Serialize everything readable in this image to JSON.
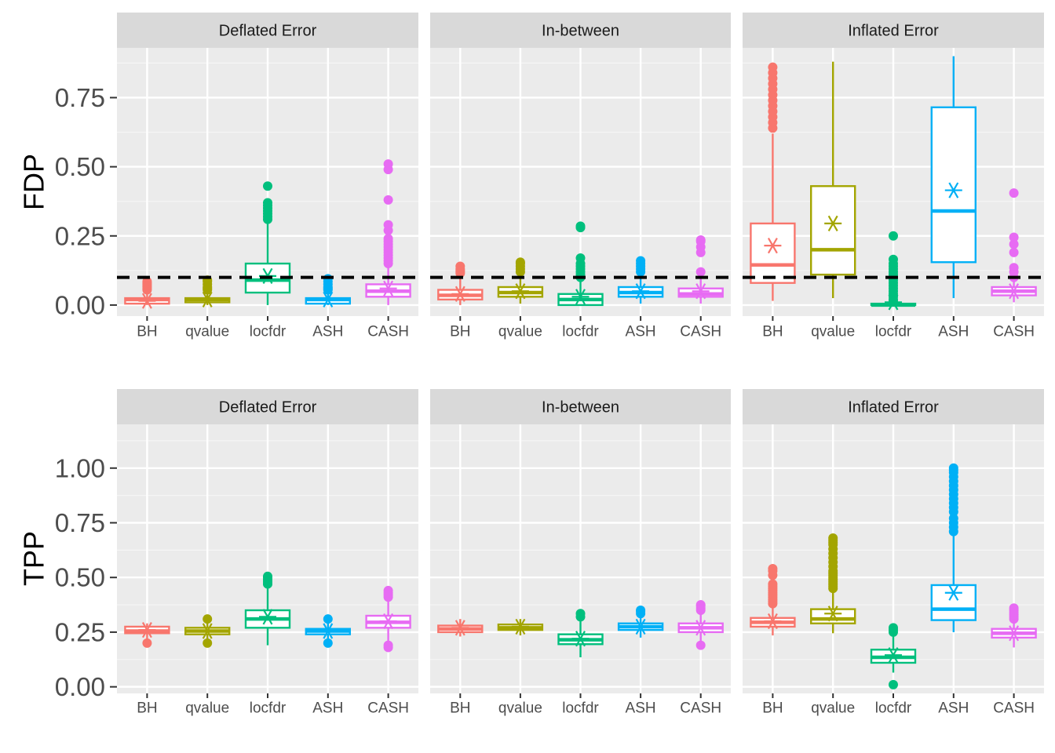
{
  "chart_data": [
    {
      "type": "boxplot",
      "ylabel": "FDP",
      "ylim": [
        -0.04,
        0.93
      ],
      "yticks": [
        0.0,
        0.25,
        0.5,
        0.75
      ],
      "ytick_labels": [
        "0.00",
        "0.25",
        "0.50",
        "0.75"
      ],
      "reference_line": {
        "y": 0.1,
        "style": "dashed",
        "color": "#000000"
      },
      "categories": [
        "BH",
        "qvalue",
        "locfdr",
        "ASH",
        "CASH"
      ],
      "panels": [
        {
          "title": "Deflated Error",
          "boxes": [
            {
              "q1": 0.005,
              "median": 0.02,
              "q3": 0.025,
              "whisker_low": 0.0,
              "whisker_high": 0.05,
              "mean": 0.015,
              "outliers": [
                0.055,
                0.06,
                0.065,
                0.07,
                0.075,
                0.08,
                0.085
              ]
            },
            {
              "q1": 0.01,
              "median": 0.02,
              "q3": 0.025,
              "whisker_low": 0.0,
              "whisker_high": 0.05,
              "mean": 0.02,
              "outliers": [
                0.055,
                0.06,
                0.065,
                0.075,
                0.085,
                0.09
              ]
            },
            {
              "q1": 0.045,
              "median": 0.09,
              "q3": 0.15,
              "whisker_low": 0.0,
              "whisker_high": 0.3,
              "mean": 0.105,
              "outliers": [
                0.31,
                0.32,
                0.33,
                0.34,
                0.35,
                0.36,
                0.37,
                0.43
              ]
            },
            {
              "q1": 0.005,
              "median": 0.02,
              "q3": 0.025,
              "whisker_low": 0.0,
              "whisker_high": 0.05,
              "mean": 0.02,
              "outliers": [
                0.055,
                0.06,
                0.065,
                0.075,
                0.085,
                0.095
              ]
            },
            {
              "q1": 0.03,
              "median": 0.05,
              "q3": 0.075,
              "whisker_low": 0.0,
              "whisker_high": 0.14,
              "mean": 0.06,
              "outliers": [
                0.15,
                0.16,
                0.17,
                0.18,
                0.19,
                0.2,
                0.21,
                0.22,
                0.23,
                0.24,
                0.27,
                0.29,
                0.38,
                0.49,
                0.51
              ]
            }
          ]
        },
        {
          "title": "In-between",
          "boxes": [
            {
              "q1": 0.02,
              "median": 0.035,
              "q3": 0.055,
              "whisker_low": 0.0,
              "whisker_high": 0.11,
              "mean": 0.04,
              "outliers": [
                0.115,
                0.12,
                0.125,
                0.13,
                0.14
              ]
            },
            {
              "q1": 0.03,
              "median": 0.045,
              "q3": 0.065,
              "whisker_low": 0.005,
              "whisker_high": 0.115,
              "mean": 0.05,
              "outliers": [
                0.12,
                0.13,
                0.14,
                0.15,
                0.155
              ]
            },
            {
              "q1": 0.0,
              "median": 0.02,
              "q3": 0.04,
              "whisker_low": 0.0,
              "whisker_high": 0.09,
              "mean": 0.03,
              "outliers": [
                0.1,
                0.11,
                0.12,
                0.13,
                0.14,
                0.15,
                0.17,
                0.28,
                0.285
              ]
            },
            {
              "q1": 0.03,
              "median": 0.045,
              "q3": 0.065,
              "whisker_low": 0.005,
              "whisker_high": 0.11,
              "mean": 0.05,
              "outliers": [
                0.12,
                0.13,
                0.14,
                0.15,
                0.16
              ]
            },
            {
              "q1": 0.03,
              "median": 0.04,
              "q3": 0.06,
              "whisker_low": 0.005,
              "whisker_high": 0.11,
              "mean": 0.05,
              "outliers": [
                0.12,
                0.19,
                0.21,
                0.23,
                0.235
              ]
            }
          ]
        },
        {
          "title": "Inflated Error",
          "boxes": [
            {
              "q1": 0.08,
              "median": 0.145,
              "q3": 0.295,
              "whisker_low": 0.015,
              "whisker_high": 0.62,
              "mean": 0.215,
              "outliers": [
                0.64,
                0.66,
                0.68,
                0.7,
                0.72,
                0.74,
                0.76,
                0.78,
                0.8,
                0.82,
                0.84,
                0.86
              ]
            },
            {
              "q1": 0.11,
              "median": 0.2,
              "q3": 0.43,
              "whisker_low": 0.025,
              "whisker_high": 0.88,
              "mean": 0.295,
              "outliers": []
            },
            {
              "q1": 0.0,
              "median": 0.0,
              "q3": 0.005,
              "whisker_low": 0.0,
              "whisker_high": 0.01,
              "mean": 0.01,
              "outliers": [
                0.015,
                0.02,
                0.03,
                0.04,
                0.05,
                0.06,
                0.07,
                0.08,
                0.09,
                0.1,
                0.11,
                0.12,
                0.13,
                0.14,
                0.15,
                0.165,
                0.25
              ]
            },
            {
              "q1": 0.155,
              "median": 0.34,
              "q3": 0.715,
              "whisker_low": 0.025,
              "whisker_high": 0.9,
              "mean": 0.415,
              "outliers": []
            },
            {
              "q1": 0.035,
              "median": 0.05,
              "q3": 0.065,
              "whisker_low": 0.01,
              "whisker_high": 0.09,
              "mean": 0.05,
              "outliers": [
                0.1,
                0.12,
                0.135,
                0.19,
                0.22,
                0.245,
                0.405
              ]
            }
          ]
        }
      ]
    },
    {
      "type": "boxplot",
      "ylabel": "TPP",
      "ylim": [
        -0.03,
        1.2
      ],
      "yticks": [
        0.0,
        0.25,
        0.5,
        0.75,
        1.0
      ],
      "ytick_labels": [
        "0.00",
        "0.25",
        "0.50",
        "0.75",
        "1.00"
      ],
      "categories": [
        "BH",
        "qvalue",
        "locfdr",
        "ASH",
        "CASH"
      ],
      "panels": [
        {
          "title": "Deflated Error",
          "boxes": [
            {
              "q1": 0.245,
              "median": 0.255,
              "q3": 0.275,
              "whisker_low": 0.215,
              "whisker_high": 0.29,
              "mean": 0.26,
              "outliers": [
                0.2
              ]
            },
            {
              "q1": 0.24,
              "median": 0.255,
              "q3": 0.27,
              "whisker_low": 0.215,
              "whisker_high": 0.29,
              "mean": 0.255,
              "outliers": [
                0.2,
                0.31
              ]
            },
            {
              "q1": 0.27,
              "median": 0.31,
              "q3": 0.35,
              "whisker_low": 0.19,
              "whisker_high": 0.465,
              "mean": 0.32,
              "outliers": [
                0.47,
                0.48,
                0.49,
                0.5,
                0.505
              ]
            },
            {
              "q1": 0.24,
              "median": 0.255,
              "q3": 0.265,
              "whisker_low": 0.215,
              "whisker_high": 0.29,
              "mean": 0.255,
              "outliers": [
                0.2,
                0.31
              ]
            },
            {
              "q1": 0.27,
              "median": 0.295,
              "q3": 0.325,
              "whisker_low": 0.2,
              "whisker_high": 0.4,
              "mean": 0.3,
              "outliers": [
                0.18,
                0.19,
                0.41,
                0.42,
                0.43,
                0.44
              ]
            }
          ]
        },
        {
          "title": "In-between",
          "boxes": [
            {
              "q1": 0.25,
              "median": 0.265,
              "q3": 0.28,
              "whisker_low": 0.23,
              "whisker_high": 0.31,
              "mean": 0.27,
              "outliers": []
            },
            {
              "q1": 0.26,
              "median": 0.27,
              "q3": 0.285,
              "whisker_low": 0.235,
              "whisker_high": 0.31,
              "mean": 0.275,
              "outliers": []
            },
            {
              "q1": 0.195,
              "median": 0.215,
              "q3": 0.24,
              "whisker_low": 0.135,
              "whisker_high": 0.31,
              "mean": 0.22,
              "outliers": [
                0.32,
                0.335
              ]
            },
            {
              "q1": 0.26,
              "median": 0.275,
              "q3": 0.29,
              "whisker_low": 0.225,
              "whisker_high": 0.325,
              "mean": 0.275,
              "outliers": [
                0.335,
                0.345,
                0.35
              ]
            },
            {
              "q1": 0.25,
              "median": 0.27,
              "q3": 0.29,
              "whisker_low": 0.21,
              "whisker_high": 0.34,
              "mean": 0.27,
              "outliers": [
                0.19,
                0.35,
                0.36,
                0.37,
                0.375
              ]
            }
          ]
        },
        {
          "title": "Inflated Error",
          "boxes": [
            {
              "q1": 0.275,
              "median": 0.295,
              "q3": 0.315,
              "whisker_low": 0.235,
              "whisker_high": 0.37,
              "mean": 0.3,
              "outliers": [
                0.38,
                0.39,
                0.4,
                0.41,
                0.42,
                0.43,
                0.44,
                0.45,
                0.46,
                0.47,
                0.51,
                0.53,
                0.54
              ]
            },
            {
              "q1": 0.29,
              "median": 0.31,
              "q3": 0.355,
              "whisker_low": 0.245,
              "whisker_high": 0.44,
              "mean": 0.335,
              "outliers": [
                0.45,
                0.46,
                0.47,
                0.48,
                0.49,
                0.5,
                0.51,
                0.52,
                0.53,
                0.55,
                0.57,
                0.59,
                0.61,
                0.63,
                0.65,
                0.66,
                0.67,
                0.68
              ]
            },
            {
              "q1": 0.11,
              "median": 0.135,
              "q3": 0.17,
              "whisker_low": 0.065,
              "whisker_high": 0.24,
              "mean": 0.145,
              "outliers": [
                0.01,
                0.25,
                0.26,
                0.27
              ]
            },
            {
              "q1": 0.305,
              "median": 0.355,
              "q3": 0.465,
              "whisker_low": 0.25,
              "whisker_high": 0.69,
              "mean": 0.43,
              "outliers": [
                0.71,
                0.73,
                0.75,
                0.77,
                0.8,
                0.82,
                0.84,
                0.86,
                0.88,
                0.9,
                0.92,
                0.94,
                0.96,
                0.98,
                0.99,
                1.0
              ]
            },
            {
              "q1": 0.225,
              "median": 0.245,
              "q3": 0.265,
              "whisker_low": 0.18,
              "whisker_high": 0.3,
              "mean": 0.245,
              "outliers": [
                0.31,
                0.32,
                0.33,
                0.34,
                0.35,
                0.36
              ]
            }
          ]
        }
      ]
    }
  ],
  "series_colors": [
    "#F8766D",
    "#A3A500",
    "#00BF7D",
    "#00B0F6",
    "#E76BF3"
  ],
  "mean_marker_icon": "asterisk-icon"
}
